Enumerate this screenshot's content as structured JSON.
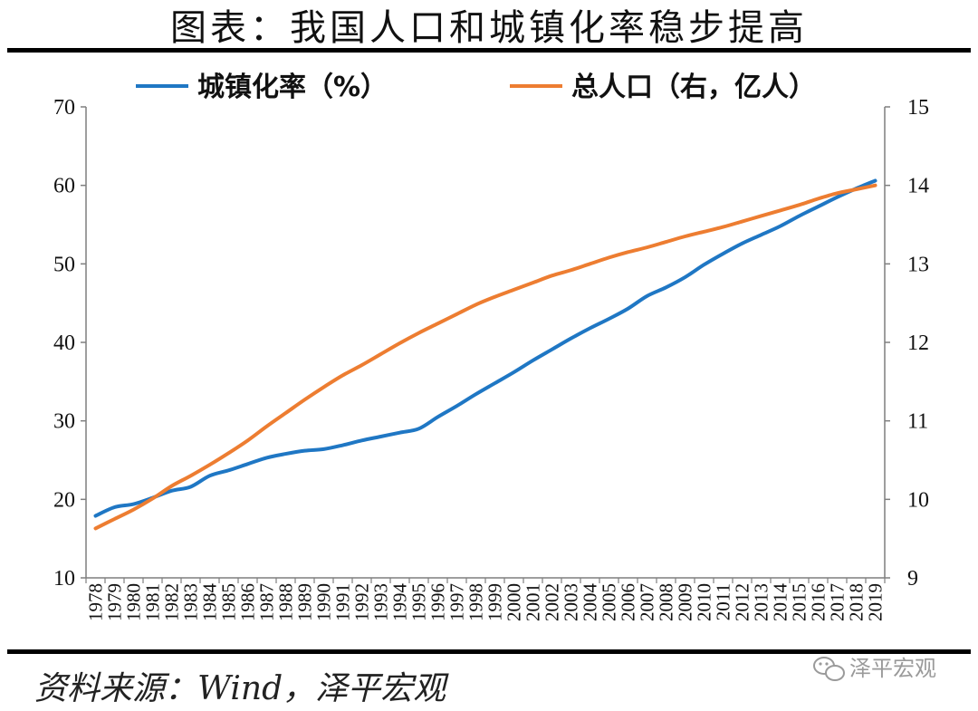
{
  "title": "图表：我国人口和城镇化率稳步提高",
  "source": "资料来源：Wind，泽平宏观",
  "watermark": "泽平宏观",
  "colors": {
    "urbanization": "#1f77c4",
    "population": "#ed7d31",
    "axis": "#7f7f7f",
    "rule": "#000000"
  },
  "chart_data": {
    "type": "line",
    "x": [
      "1978",
      "1979",
      "1980",
      "1981",
      "1982",
      "1983",
      "1984",
      "1985",
      "1986",
      "1987",
      "1988",
      "1989",
      "1990",
      "1991",
      "1992",
      "1993",
      "1994",
      "1995",
      "1996",
      "1997",
      "1998",
      "1999",
      "2000",
      "2001",
      "2002",
      "2003",
      "2004",
      "2005",
      "2006",
      "2007",
      "2008",
      "2009",
      "2010",
      "2011",
      "2012",
      "2013",
      "2014",
      "2015",
      "2016",
      "2017",
      "2018",
      "2019"
    ],
    "series": [
      {
        "name": "城镇化率（%）",
        "axis": "left",
        "values": [
          17.9,
          19.0,
          19.4,
          20.2,
          21.1,
          21.6,
          23.0,
          23.7,
          24.5,
          25.3,
          25.8,
          26.2,
          26.4,
          26.9,
          27.5,
          28.0,
          28.5,
          29.0,
          30.5,
          31.9,
          33.4,
          34.8,
          36.2,
          37.7,
          39.1,
          40.5,
          41.8,
          43.0,
          44.3,
          45.9,
          47.0,
          48.3,
          49.9,
          51.3,
          52.6,
          53.7,
          54.8,
          56.1,
          57.3,
          58.5,
          59.6,
          60.6
        ]
      },
      {
        "name": "总人口（右，亿人）",
        "axis": "right",
        "values": [
          9.63,
          9.75,
          9.87,
          10.01,
          10.17,
          10.3,
          10.44,
          10.59,
          10.75,
          10.93,
          11.1,
          11.27,
          11.43,
          11.58,
          11.71,
          11.85,
          11.99,
          12.12,
          12.24,
          12.36,
          12.48,
          12.58,
          12.67,
          12.76,
          12.85,
          12.92,
          13.0,
          13.08,
          13.15,
          13.21,
          13.28,
          13.35,
          13.41,
          13.47,
          13.54,
          13.61,
          13.68,
          13.75,
          13.83,
          13.9,
          13.95,
          14.0
        ]
      }
    ],
    "y_left": {
      "min": 10,
      "max": 70,
      "ticks": [
        "10",
        "20",
        "30",
        "40",
        "50",
        "60",
        "70"
      ]
    },
    "y_right": {
      "min": 9,
      "max": 15,
      "ticks": [
        "9",
        "10",
        "11",
        "12",
        "13",
        "14",
        "15"
      ]
    },
    "grid": false,
    "legend": "top"
  }
}
